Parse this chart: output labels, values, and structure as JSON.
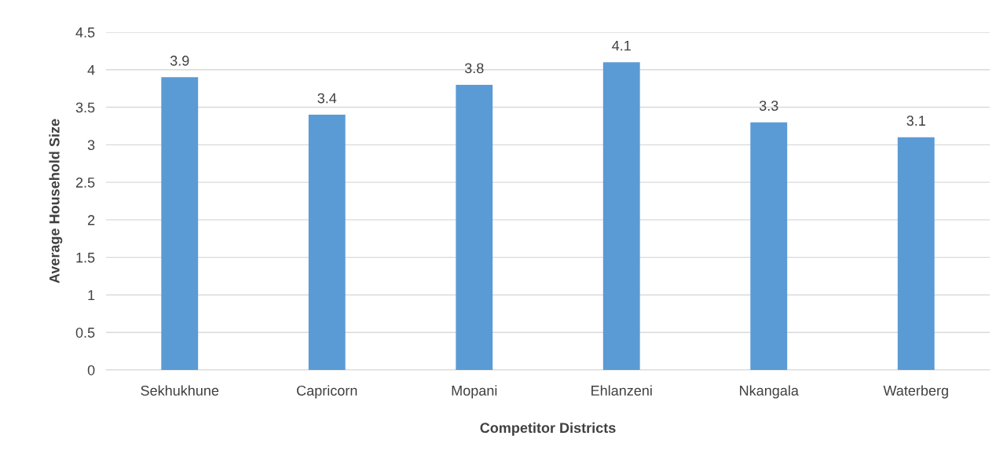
{
  "chart_data": {
    "type": "bar",
    "xlabel": "Competitor Districts",
    "ylabel": "Average Household Size",
    "categories": [
      "Sekhukhune",
      "Capricorn",
      "Mopani",
      "Ehlanzeni",
      "Nkangala",
      "Waterberg"
    ],
    "values": [
      3.9,
      3.4,
      3.8,
      4.1,
      3.3,
      3.1
    ],
    "color": "#5b9bd5",
    "data_labels": true,
    "grid": "y",
    "ylim": [
      0,
      4.5
    ],
    "yticks": [
      0,
      0.5,
      1,
      1.5,
      2,
      2.5,
      3,
      3.5,
      4,
      4.5
    ]
  }
}
